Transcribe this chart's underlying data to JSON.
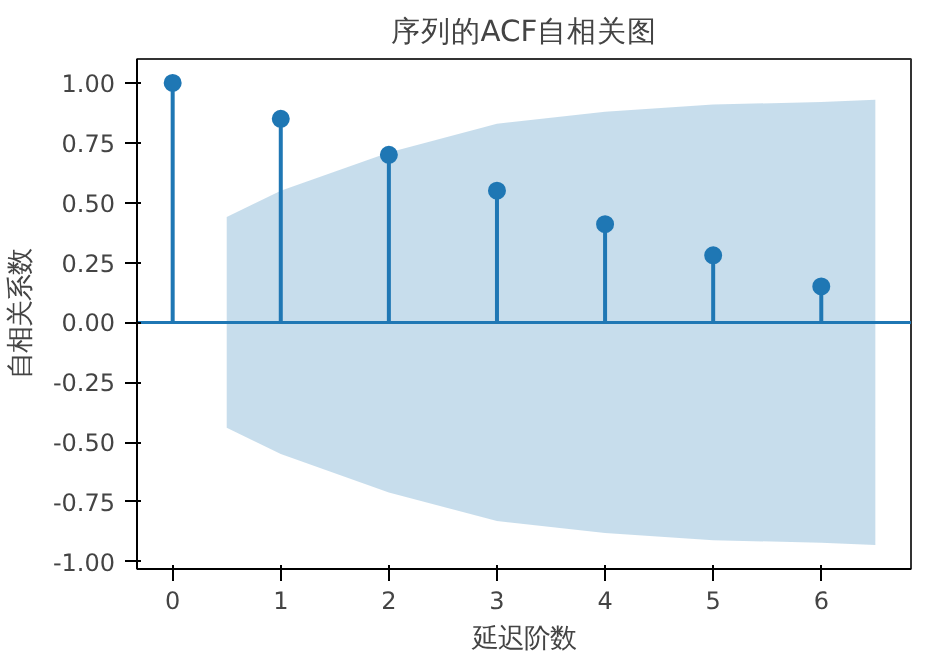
{
  "chart_data": {
    "type": "lollipop",
    "title": "序列的ACF自相关图",
    "xlabel": "延迟阶数",
    "ylabel": "自相关系数",
    "x": [
      0,
      1,
      2,
      3,
      4,
      5,
      6
    ],
    "values": [
      1.0,
      0.85,
      0.7,
      0.55,
      0.41,
      0.28,
      0.15
    ],
    "color": "#1f77b4",
    "marker": "circle",
    "series": [
      {
        "type": "line",
        "marker": "none",
        "color": "#1f77b4",
        "x": [
          -0.33,
          0.5,
          1,
          2,
          3,
          4,
          5,
          6,
          6.5,
          6.83
        ],
        "values": [
          0,
          0,
          0,
          0,
          0,
          0,
          0,
          0,
          0,
          0
        ],
        "lower": [
          null,
          -0.44,
          -0.55,
          -0.71,
          -0.83,
          -0.88,
          -0.91,
          -0.92,
          -0.93,
          null
        ],
        "upper": [
          null,
          0.44,
          0.55,
          0.71,
          0.83,
          0.88,
          0.91,
          0.92,
          0.93,
          null
        ]
      }
    ],
    "xlim": [
      -0.33,
      6.83
    ],
    "ylim": [
      -1.03,
      1.1
    ],
    "xticks": [
      0,
      1,
      2,
      3,
      4,
      5,
      6
    ],
    "yticks": [
      {
        "value": 1,
        "label": "1.00"
      },
      {
        "value": 0.75,
        "label": "0.75"
      },
      {
        "value": 0.5,
        "label": "0.50"
      },
      {
        "value": 0.25,
        "label": "0.25"
      },
      {
        "value": 0,
        "label": "0.00"
      },
      {
        "value": -0.25,
        "label": "-0.25"
      },
      {
        "value": -0.5,
        "label": "-0.50"
      },
      {
        "value": -0.75,
        "label": "-0.75"
      },
      {
        "value": -1,
        "label": "-1.00"
      }
    ],
    "grid": false
  }
}
